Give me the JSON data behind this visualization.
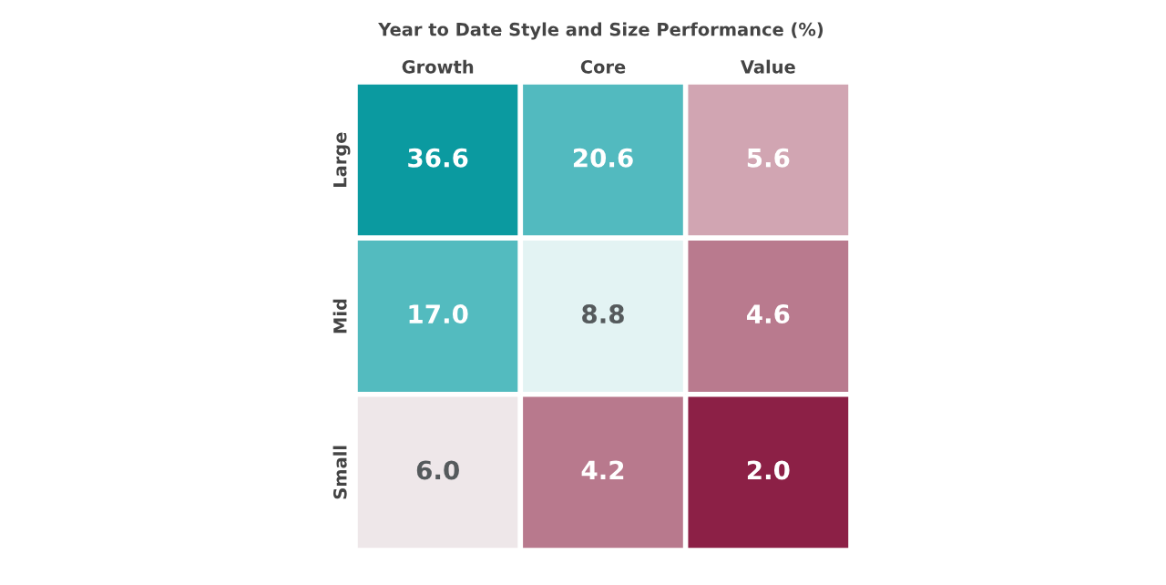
{
  "chart_data": {
    "type": "heatmap",
    "title": "Year to Date Style and Size Performance (%)",
    "categories": [
      "Growth",
      "Core",
      "Value"
    ],
    "y_categories": [
      "Large",
      "Mid",
      "Small"
    ],
    "cells": [
      [
        36.6,
        20.6,
        5.6
      ],
      [
        17.0,
        8.8,
        4.6
      ],
      [
        6.0,
        4.2,
        2.0
      ]
    ],
    "cell_labels": [
      [
        "36.6",
        "20.6",
        "5.6"
      ],
      [
        "17.0",
        "8.8",
        "4.6"
      ],
      [
        "6.0",
        "4.2",
        "2.0"
      ]
    ],
    "colors": [
      [
        "#0b9aa0",
        "#52babf",
        "#d3a8b5"
      ],
      [
        "#52babf",
        "#e3f3f3",
        "#b97a8e"
      ],
      [
        "#f3f3f3",
        "#b97a8e",
        "#8c2046"
      ]
    ],
    "data_labels": true
  }
}
